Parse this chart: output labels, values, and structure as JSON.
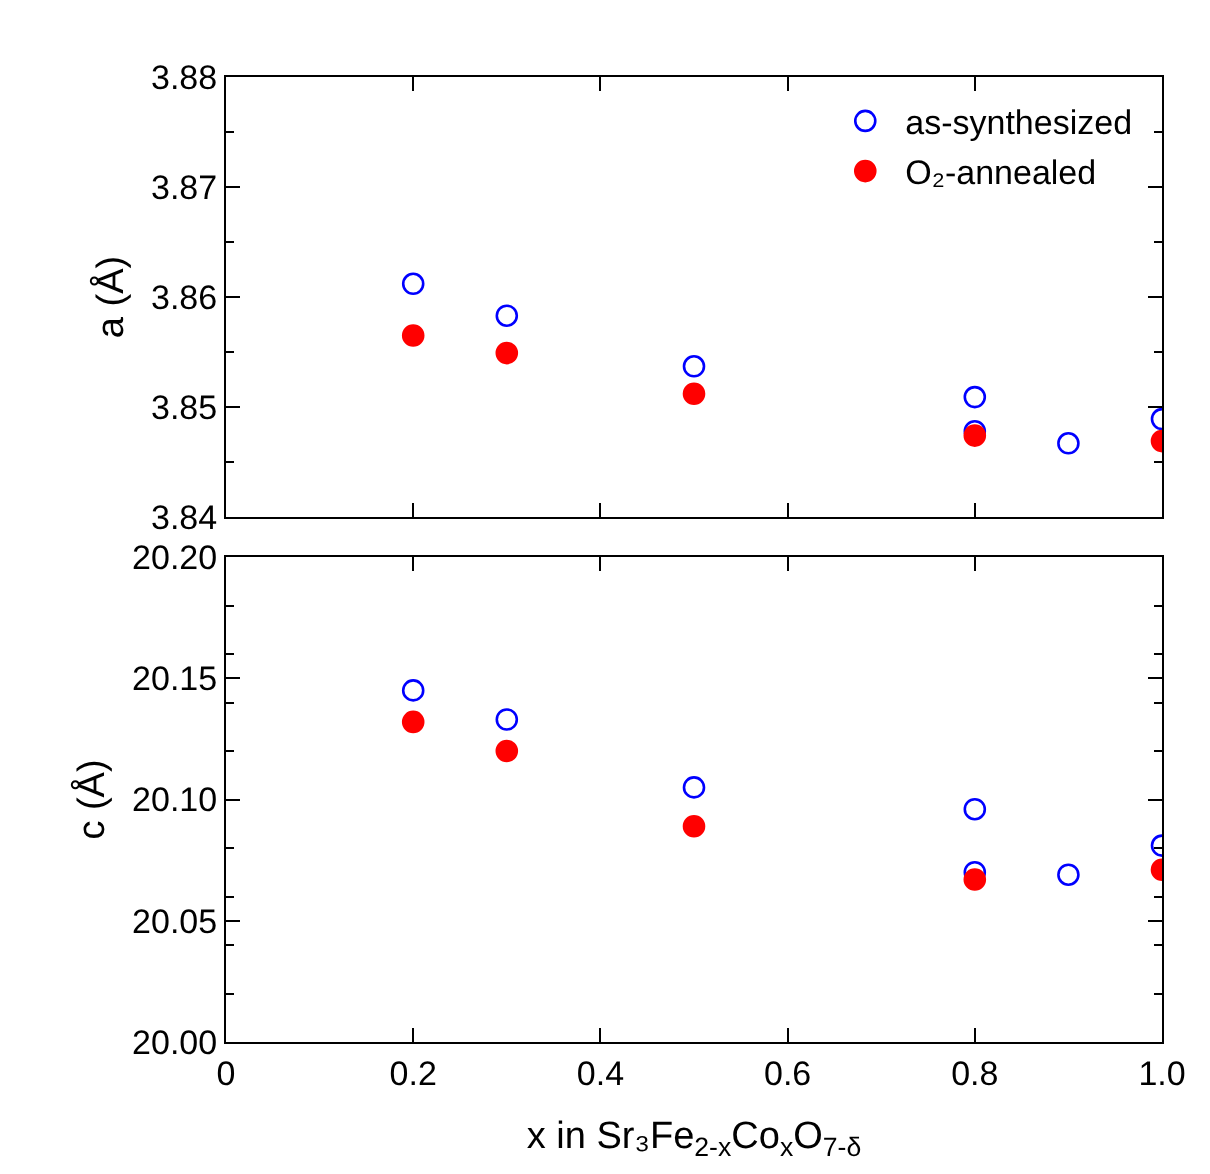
{
  "chart_data": [
    {
      "type": "scatter",
      "ylabel": "a (Å)",
      "xlim": [
        0,
        1
      ],
      "xticks": [
        0,
        0.2,
        0.4,
        0.6,
        0.8,
        1.0
      ],
      "ylim": [
        3.84,
        3.88
      ],
      "yticks": [
        3.84,
        3.85,
        3.86,
        3.87,
        3.88
      ],
      "tick_labels": "y",
      "legend": "top right",
      "marker": "circle",
      "series": [
        {
          "name": "as-synthesized",
          "color": "#0000ff",
          "x": [
            0.2,
            0.3,
            0.5,
            0.8,
            0.8,
            0.9,
            1.0
          ],
          "values": [
            3.8612,
            3.8583,
            3.8537,
            3.8509,
            3.8478,
            3.8467,
            3.8489
          ]
        },
        {
          "name": "O₂-annealed",
          "color": "#ff0000",
          "x": [
            0.2,
            0.3,
            0.5,
            0.8,
            1.0
          ],
          "values": [
            3.8565,
            3.8549,
            3.8512,
            3.8474,
            3.8469
          ]
        }
      ]
    },
    {
      "type": "scatter",
      "ylabel": "c (Å)",
      "xlabel": "x in Sr₃Fe$_{2-x}$Co$_{x}$O$_{7-δ}$",
      "xlim": [
        0,
        1
      ],
      "xticks": [
        0,
        0.2,
        0.4,
        0.6,
        0.8,
        {
          "value": 1.0,
          "label": "1.0"
        }
      ],
      "ylim": [
        20.0,
        20.2
      ],
      "yticks": [
        {
          "value": 20.0,
          "label": "20.00"
        },
        {
          "value": 20.05,
          "label": "20.05"
        },
        {
          "value": 20.1,
          "label": "20.10"
        },
        {
          "value": 20.15,
          "label": "20.15"
        },
        {
          "value": 20.2,
          "label": "20.20"
        }
      ],
      "legend": false,
      "marker": "circle",
      "series": [
        {
          "color": "#0000ff",
          "x": [
            0.2,
            0.3,
            0.5,
            0.8,
            0.8,
            0.9,
            1.0
          ],
          "values": [
            20.145,
            20.133,
            20.105,
            20.096,
            20.07,
            20.069,
            20.081
          ]
        },
        {
          "color": "#ff0000",
          "x": [
            0.2,
            0.3,
            0.5,
            0.8,
            1.0
          ],
          "values": [
            20.132,
            20.12,
            20.089,
            20.067,
            20.071
          ]
        }
      ]
    }
  ]
}
